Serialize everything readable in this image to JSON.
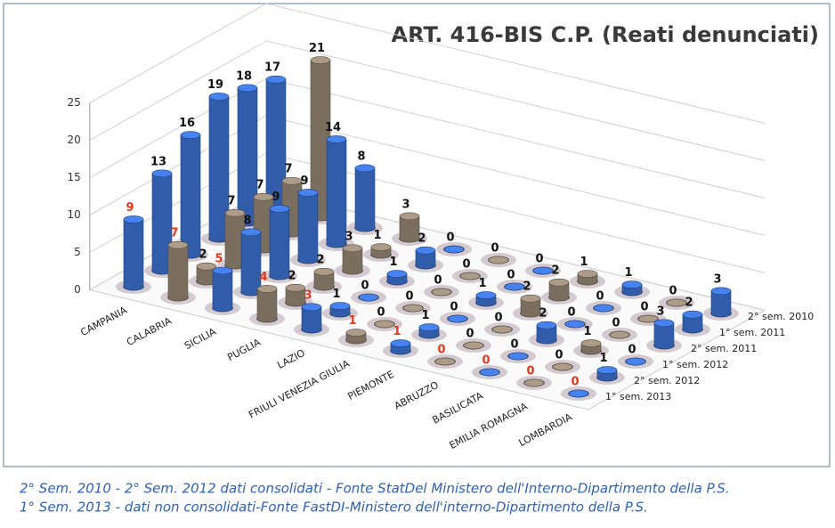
{
  "chart_data": {
    "type": "cylinder3d",
    "title": "ART. 416-BIS C.P. (Reati denunciati)",
    "categories": [
      "CAMPANIA",
      "CALABRIA",
      "SICILIA",
      "PUGLIA",
      "LAZIO",
      "FRIULI VENEZIA GIULIA",
      "PIEMONTE",
      "ABRUZZO",
      "BASILICATA",
      "EMILIA ROMAGNA",
      "LOMBARDIA"
    ],
    "category_colors": [
      "#3a6cc8",
      "#8f8170",
      "#3a6cc8",
      "#8f8170",
      "#3a6cc8",
      "#8f8170",
      "#3a6cc8",
      "#8f8170",
      "#3a6cc8",
      "#8f8170",
      "#3a6cc8"
    ],
    "series": [
      {
        "name": "2° sem. 2010",
        "values": [
          17,
          21,
          8,
          3,
          0,
          0,
          0,
          1,
          1,
          0,
          3
        ]
      },
      {
        "name": "1° sem. 2011",
        "values": [
          18,
          7,
          14,
          1,
          2,
          0,
          0,
          2,
          0,
          0,
          2
        ]
      },
      {
        "name": "2° sem. 2011",
        "values": [
          19,
          7,
          9,
          3,
          1,
          0,
          1,
          2,
          0,
          0,
          3
        ]
      },
      {
        "name": "1° sem. 2012",
        "values": [
          16,
          7,
          9,
          2,
          0,
          0,
          0,
          0,
          2,
          1,
          0
        ]
      },
      {
        "name": "2° sem. 2012",
        "values": [
          13,
          2,
          8,
          2,
          1,
          0,
          1,
          0,
          0,
          0,
          1
        ]
      },
      {
        "name": "1° sem. 2013",
        "values": [
          9,
          7,
          5,
          4,
          3,
          1,
          1,
          0,
          0,
          0,
          0
        ]
      }
    ],
    "label_color": "#111111",
    "front_label_color": "#e03a1e",
    "ylim": [
      0,
      25
    ],
    "yticks": [
      0,
      5,
      10,
      15,
      20,
      25
    ],
    "grid": true,
    "notes": [
      "2° Sem. 2010 - 2° Sem. 2012 dati consolidati - Fonte StatDel Ministero dell'Interno-Dipartimento della P.S.",
      "1° Sem. 2013 - dati non consolidati-Fonte FastDI-Ministero dell'interno-Dipartimento della P.S."
    ]
  }
}
